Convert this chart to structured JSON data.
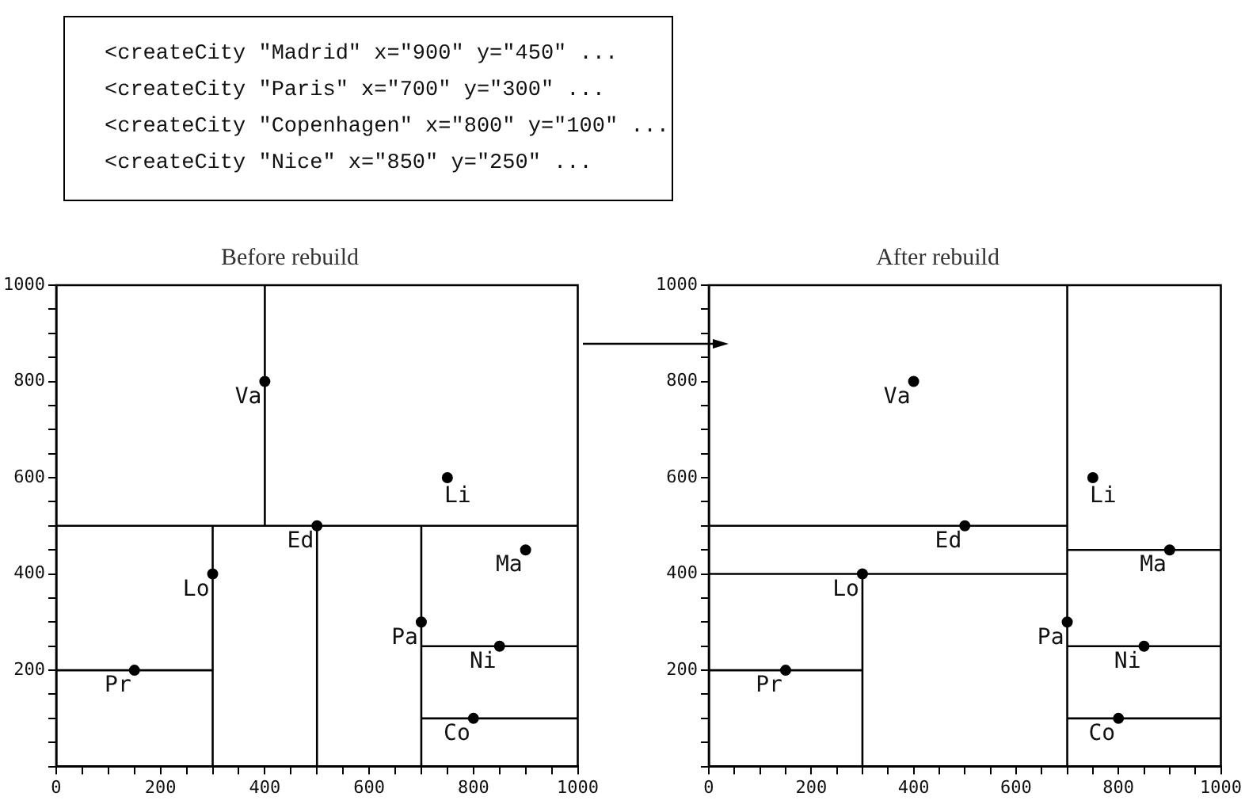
{
  "chart_data": [
    {
      "type": "other",
      "annotations": [
        "<createCity \"Madrid\" x=\"900\" y=\"450\" ...",
        "<createCity \"Paris\" x=\"700\" y=\"300\" ...",
        "<createCity \"Copenhagen\" x=\"800\" y=\"100\" ...",
        "<createCity \"Nice\" x=\"850\" y=\"250\" ..."
      ]
    },
    {
      "type": "scatter",
      "title": "Before rebuild",
      "xlim": [
        0,
        1000
      ],
      "ylim": [
        0,
        1000
      ],
      "grid": false,
      "marker": "circle",
      "xticks": [
        0,
        {
          "value": 50,
          "label": null
        },
        {
          "value": 100,
          "label": null
        },
        {
          "value": 150,
          "label": null
        },
        200,
        {
          "value": 250,
          "label": null
        },
        {
          "value": 300,
          "label": null
        },
        {
          "value": 350,
          "label": null
        },
        400,
        {
          "value": 450,
          "label": null
        },
        {
          "value": 500,
          "label": null
        },
        {
          "value": 550,
          "label": null
        },
        600,
        {
          "value": 650,
          "label": null
        },
        {
          "value": 700,
          "label": null
        },
        {
          "value": 750,
          "label": null
        },
        800,
        {
          "value": 850,
          "label": null
        },
        {
          "value": 900,
          "label": null
        },
        {
          "value": 950,
          "label": null
        },
        1000
      ],
      "yticks": [
        {
          "value": 0,
          "label": null
        },
        {
          "value": 50,
          "label": null
        },
        {
          "value": 100,
          "label": null
        },
        {
          "value": 150,
          "label": null
        },
        200,
        {
          "value": 250,
          "label": null
        },
        {
          "value": 300,
          "label": null
        },
        {
          "value": 350,
          "label": null
        },
        400,
        {
          "value": 450,
          "label": null
        },
        {
          "value": 500,
          "label": null
        },
        {
          "value": 550,
          "label": null
        },
        600,
        {
          "value": 650,
          "label": null
        },
        {
          "value": 700,
          "label": null
        },
        {
          "value": 750,
          "label": null
        },
        800,
        {
          "value": 850,
          "label": null
        },
        {
          "value": 900,
          "label": null
        },
        {
          "value": 950,
          "label": null
        },
        1000
      ],
      "series": [
        {
          "type": "line",
          "color": "#000000",
          "marker": "none",
          "x": [
            0,
            1000
          ],
          "values": [
            500,
            500
          ]
        },
        {
          "type": "line",
          "color": "#000000",
          "marker": "none",
          "x": [
            400,
            400
          ],
          "values": [
            500,
            1000
          ]
        },
        {
          "type": "line",
          "color": "#000000",
          "marker": "none",
          "x": [
            300,
            300
          ],
          "values": [
            0,
            500
          ]
        },
        {
          "type": "line",
          "color": "#000000",
          "marker": "none",
          "x": [
            0,
            300
          ],
          "values": [
            200,
            200
          ]
        },
        {
          "type": "line",
          "color": "#000000",
          "marker": "none",
          "x": [
            500,
            500
          ],
          "values": [
            0,
            500
          ]
        },
        {
          "type": "line",
          "color": "#000000",
          "marker": "none",
          "x": [
            700,
            700
          ],
          "values": [
            0,
            500
          ]
        },
        {
          "type": "line",
          "color": "#000000",
          "marker": "none",
          "x": [
            700,
            1000
          ],
          "values": [
            250,
            250
          ]
        },
        {
          "type": "line",
          "color": "#000000",
          "marker": "none",
          "x": [
            700,
            1000
          ],
          "values": [
            100,
            100
          ]
        },
        {
          "type": "scatter",
          "color": "#000000",
          "x": [
            400,
            750,
            500,
            900,
            300,
            700,
            850,
            150,
            800
          ],
          "values": [
            800,
            600,
            500,
            450,
            400,
            300,
            250,
            200,
            100
          ]
        }
      ],
      "annotations": [
        {
          "text": "Va",
          "x": 400,
          "y": 800
        },
        {
          "text": "Li",
          "x": 750,
          "y": 600
        },
        {
          "text": "Ed",
          "x": 500,
          "y": 500
        },
        {
          "text": "Ma",
          "x": 900,
          "y": 450
        },
        {
          "text": "Lo",
          "x": 300,
          "y": 400
        },
        {
          "text": "Pa",
          "x": 700,
          "y": 300
        },
        {
          "text": "Ni",
          "x": 850,
          "y": 250
        },
        {
          "text": "Pr",
          "x": 150,
          "y": 200
        },
        {
          "text": "Co",
          "x": 800,
          "y": 100
        }
      ]
    },
    {
      "type": "scatter",
      "title": "After rebuild",
      "xlim": [
        0,
        1000
      ],
      "ylim": [
        0,
        1000
      ],
      "grid": false,
      "marker": "circle",
      "xticks": [
        0,
        {
          "value": 50,
          "label": null
        },
        {
          "value": 100,
          "label": null
        },
        {
          "value": 150,
          "label": null
        },
        200,
        {
          "value": 250,
          "label": null
        },
        {
          "value": 300,
          "label": null
        },
        {
          "value": 350,
          "label": null
        },
        400,
        {
          "value": 450,
          "label": null
        },
        {
          "value": 500,
          "label": null
        },
        {
          "value": 550,
          "label": null
        },
        600,
        {
          "value": 650,
          "label": null
        },
        {
          "value": 700,
          "label": null
        },
        {
          "value": 750,
          "label": null
        },
        800,
        {
          "value": 850,
          "label": null
        },
        {
          "value": 900,
          "label": null
        },
        {
          "value": 950,
          "label": null
        },
        1000
      ],
      "yticks": [
        {
          "value": 0,
          "label": null
        },
        {
          "value": 50,
          "label": null
        },
        {
          "value": 100,
          "label": null
        },
        {
          "value": 150,
          "label": null
        },
        200,
        {
          "value": 250,
          "label": null
        },
        {
          "value": 300,
          "label": null
        },
        {
          "value": 350,
          "label": null
        },
        400,
        {
          "value": 450,
          "label": null
        },
        {
          "value": 500,
          "label": null
        },
        {
          "value": 550,
          "label": null
        },
        600,
        {
          "value": 650,
          "label": null
        },
        {
          "value": 700,
          "label": null
        },
        {
          "value": 750,
          "label": null
        },
        800,
        {
          "value": 850,
          "label": null
        },
        {
          "value": 900,
          "label": null
        },
        {
          "value": 950,
          "label": null
        },
        1000
      ],
      "series": [
        {
          "type": "line",
          "color": "#000000",
          "marker": "none",
          "x": [
            700,
            700
          ],
          "values": [
            0,
            1000
          ]
        },
        {
          "type": "line",
          "color": "#000000",
          "marker": "none",
          "x": [
            0,
            700
          ],
          "values": [
            500,
            500
          ]
        },
        {
          "type": "line",
          "color": "#000000",
          "marker": "none",
          "x": [
            0,
            700
          ],
          "values": [
            400,
            400
          ]
        },
        {
          "type": "line",
          "color": "#000000",
          "marker": "none",
          "x": [
            300,
            300
          ],
          "values": [
            0,
            400
          ]
        },
        {
          "type": "line",
          "color": "#000000",
          "marker": "none",
          "x": [
            0,
            300
          ],
          "values": [
            200,
            200
          ]
        },
        {
          "type": "line",
          "color": "#000000",
          "marker": "none",
          "x": [
            700,
            1000
          ],
          "values": [
            450,
            450
          ]
        },
        {
          "type": "line",
          "color": "#000000",
          "marker": "none",
          "x": [
            700,
            1000
          ],
          "values": [
            250,
            250
          ]
        },
        {
          "type": "line",
          "color": "#000000",
          "marker": "none",
          "x": [
            700,
            1000
          ],
          "values": [
            100,
            100
          ]
        },
        {
          "type": "scatter",
          "color": "#000000",
          "x": [
            400,
            750,
            500,
            900,
            300,
            700,
            850,
            150,
            800
          ],
          "values": [
            800,
            600,
            500,
            450,
            400,
            300,
            250,
            200,
            100
          ]
        }
      ],
      "annotations": [
        {
          "text": "Va",
          "x": 400,
          "y": 800
        },
        {
          "text": "Li",
          "x": 750,
          "y": 600
        },
        {
          "text": "Ed",
          "x": 500,
          "y": 500
        },
        {
          "text": "Ma",
          "x": 900,
          "y": 450
        },
        {
          "text": "Lo",
          "x": 300,
          "y": 400
        },
        {
          "text": "Pa",
          "x": 700,
          "y": 300
        },
        {
          "text": "Ni",
          "x": 850,
          "y": 250
        },
        {
          "text": "Pr",
          "x": 150,
          "y": 200
        },
        {
          "text": "Co",
          "x": 800,
          "y": 100
        }
      ]
    }
  ]
}
